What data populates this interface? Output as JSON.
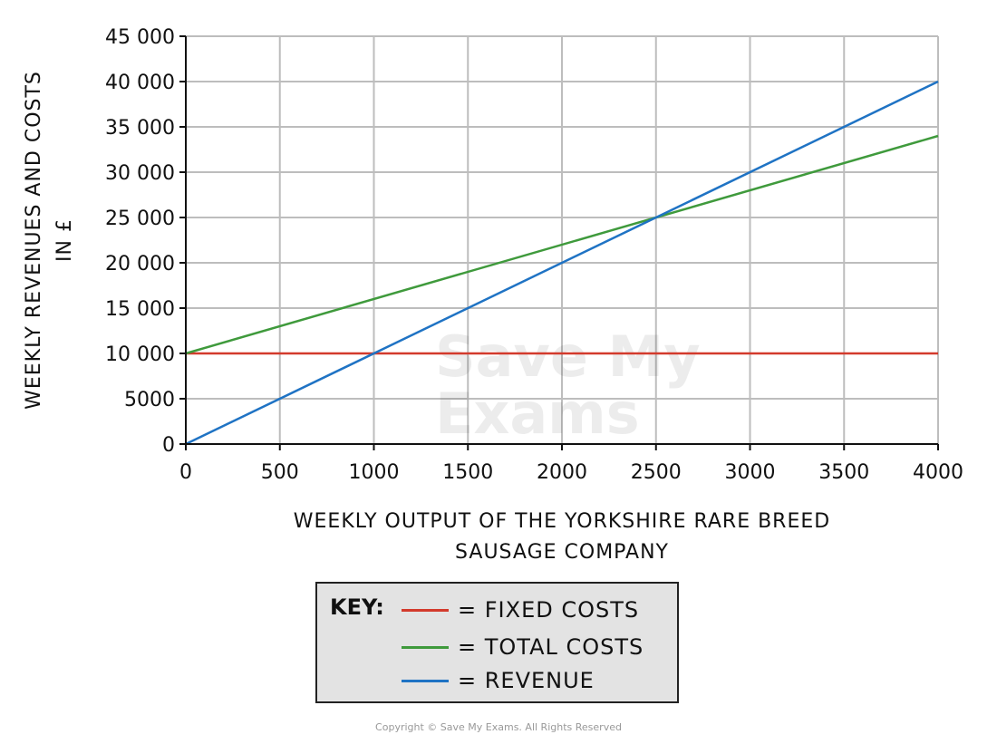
{
  "chart_data": {
    "type": "line",
    "title": "",
    "xlabel": [
      "WEEKLY OUTPUT OF THE YORKSHIRE RARE BREED",
      "SAUSAGE COMPANY"
    ],
    "ylabel": [
      "WEEKLY REVENUES AND COSTS",
      "IN £"
    ],
    "xlim": [
      0,
      4000
    ],
    "ylim": [
      0,
      45000
    ],
    "xticks": [
      0,
      500,
      1000,
      1500,
      2000,
      2500,
      3000,
      3500,
      4000
    ],
    "xtick_labels": [
      "0",
      "500",
      "1000",
      "1500",
      "2000",
      "2500",
      "3000",
      "3500",
      "4000"
    ],
    "yticks": [
      0,
      5000,
      10000,
      15000,
      20000,
      25000,
      30000,
      35000,
      40000,
      45000
    ],
    "ytick_labels": [
      "0",
      "5000",
      "10 000",
      "15 000",
      "20 000",
      "25 000",
      "30 000",
      "35 000",
      "40 000",
      "45 000"
    ],
    "grid": true,
    "series": [
      {
        "name": "FIXED COSTS",
        "color": "#d33a2c",
        "x": [
          0,
          4000
        ],
        "y": [
          10000,
          10000
        ]
      },
      {
        "name": "TOTAL COSTS",
        "color": "#3f9a3c",
        "x": [
          0,
          4000
        ],
        "y": [
          10000,
          34000
        ]
      },
      {
        "name": "REVENUE",
        "color": "#1f73c4",
        "x": [
          0,
          4000
        ],
        "y": [
          0,
          40000
        ]
      }
    ],
    "legend": {
      "placement": "bottom",
      "title": "KEY:",
      "entries": [
        "= FIXED  COSTS",
        "= TOTAL  COSTS",
        "= REVENUE"
      ]
    }
  },
  "watermark": "Save My Exams",
  "copyright": "Copyright © Save My Exams. All Rights Reserved"
}
